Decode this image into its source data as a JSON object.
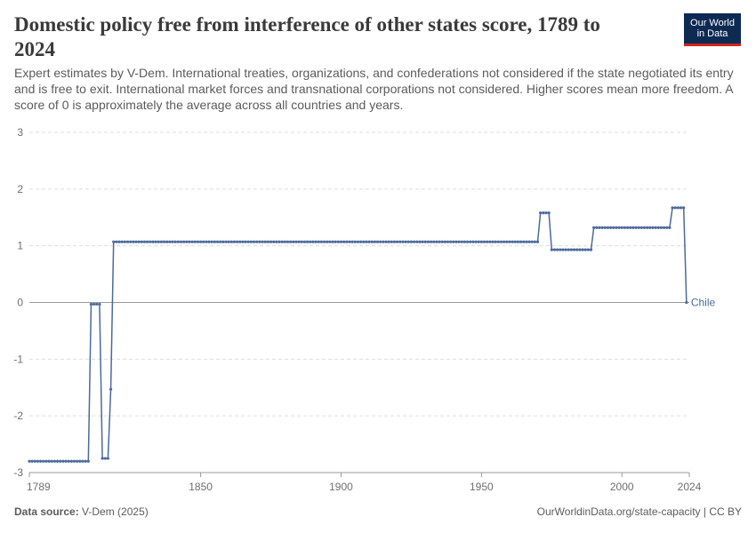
{
  "header": {
    "title": "Domestic policy free from interference of other states score, 1789 to 2024",
    "subtitle": "Expert estimates by V-Dem. International treaties, organizations, and confederations not considered if the state negotiated its entry and is free to exit. International market forces and transnational corporations not considered. Higher scores mean more freedom. A score of 0 is approximately the average across all countries and years.",
    "logo_line1": "Our World",
    "logo_line2": "in Data"
  },
  "footer": {
    "source_label": "Data source:",
    "source_value": "V-Dem (2025)",
    "url_license": "OurWorldinData.org/state-capacity | CC BY"
  },
  "colors": {
    "series": "#4c6a9c",
    "grid": "#dddddd",
    "zero_line": "#9a9a9a",
    "axis_text": "#6e6e6e"
  },
  "chart_data": {
    "type": "line",
    "title": "Domestic policy free from interference of other states score, 1789 to 2024",
    "xlabel": "",
    "ylabel": "",
    "xlim": [
      1789,
      2024
    ],
    "ylim": [
      -3,
      3
    ],
    "x_ticks": [
      1789,
      1850,
      1900,
      1950,
      2000,
      2024
    ],
    "y_ticks": [
      3,
      2,
      1,
      0,
      -1,
      -2,
      -3
    ],
    "grid": "horizontal dashed",
    "series": [
      {
        "name": "Chile",
        "points": [
          [
            1789,
            -2.8
          ],
          [
            1810,
            -2.8
          ],
          [
            1811,
            -0.03
          ],
          [
            1814,
            -0.03
          ],
          [
            1815,
            -2.75
          ],
          [
            1817,
            -2.75
          ],
          [
            1818,
            -1.53
          ],
          [
            1819,
            1.07
          ],
          [
            1970,
            1.07
          ],
          [
            1971,
            1.58
          ],
          [
            1974,
            1.58
          ],
          [
            1975,
            0.93
          ],
          [
            1989,
            0.93
          ],
          [
            1990,
            1.32
          ],
          [
            2017,
            1.32
          ],
          [
            2018,
            1.67
          ],
          [
            2022,
            1.67
          ],
          [
            2023,
            0.0
          ]
        ]
      }
    ]
  }
}
